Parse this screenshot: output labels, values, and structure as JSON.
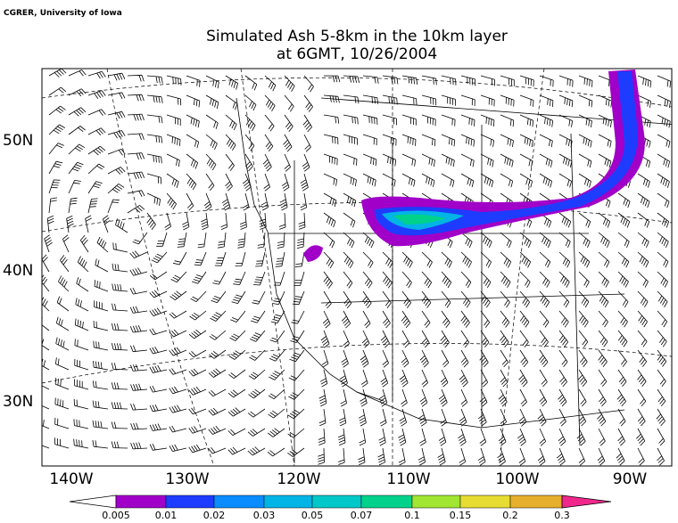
{
  "credit": "CGRER, University of Iowa",
  "title": [
    "Simulated Ash 5-8km in the 10km layer",
    "at 6GMT, 10/26/2004"
  ],
  "lon_labels": [
    "140W",
    "130W",
    "120W",
    "110W",
    "100W",
    "90W"
  ],
  "lat_labels": [
    "50N",
    "40N",
    "30N"
  ],
  "colorbar": {
    "labels": [
      "0.005",
      "0.01",
      "0.02",
      "0.03",
      "0.05",
      "0.07",
      "0.1",
      "0.15",
      "0.2",
      "0.3"
    ],
    "colors": [
      "#a000c8",
      "#1e3cff",
      "#0a8cff",
      "#00b4e6",
      "#00c8c8",
      "#00d28c",
      "#a0e632",
      "#e6dc32",
      "#e6af2d",
      "#f01e1e"
    ],
    "under_color": "#ffffff",
    "over_color": "#f0288c"
  }
}
